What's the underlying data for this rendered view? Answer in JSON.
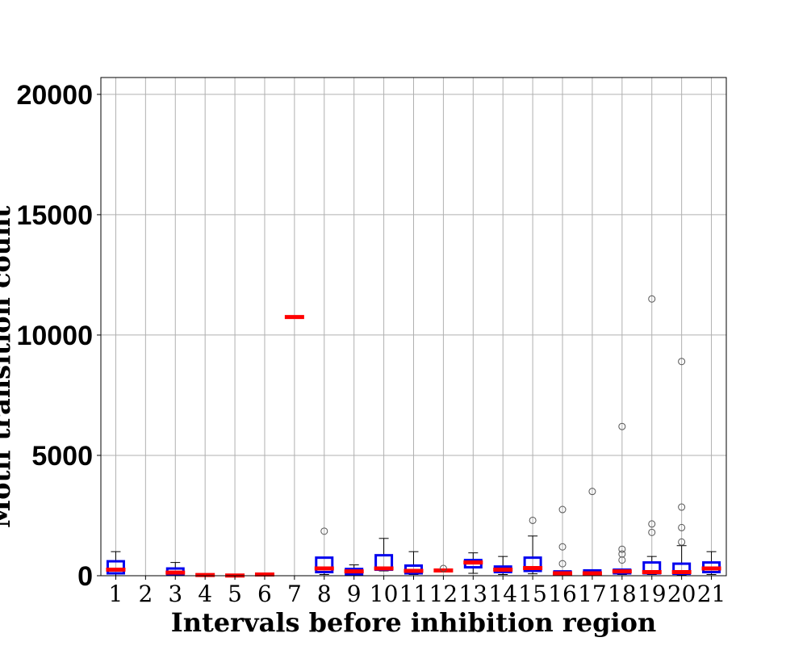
{
  "chart_data": {
    "type": "box",
    "xlabel": "Intervals before inhibition region",
    "ylabel": "Motif transition count",
    "ylim": [
      0,
      20700
    ],
    "yticks": [
      0,
      5000,
      10000,
      15000,
      20000
    ],
    "categories": [
      "1",
      "2",
      "3",
      "4",
      "5",
      "6",
      "7",
      "8",
      "9",
      "10",
      "11",
      "12",
      "13",
      "14",
      "15",
      "16",
      "17",
      "18",
      "19",
      "20",
      "21"
    ],
    "grid": true,
    "legend": "none",
    "colors": {
      "box": "#0000ee",
      "median": "#ff0000",
      "whisker": "#000000",
      "flier": "#555555",
      "grid": "#b0b0b0"
    },
    "boxes": [
      {
        "category": "1",
        "whislo": 0,
        "q1": 100,
        "median": 250,
        "q3": 600,
        "whishi": 1000,
        "fliers": []
      },
      {
        "category": "2",
        "empty": true
      },
      {
        "category": "3",
        "whislo": 0,
        "q1": 60,
        "median": 130,
        "q3": 300,
        "whishi": 550,
        "fliers": []
      },
      {
        "category": "4",
        "whislo": 30,
        "q1": 30,
        "median": 30,
        "q3": 30,
        "whishi": 30,
        "fliers": []
      },
      {
        "category": "5",
        "whislo": 10,
        "q1": 10,
        "median": 10,
        "q3": 10,
        "whishi": 10,
        "fliers": []
      },
      {
        "category": "6",
        "whislo": 50,
        "q1": 50,
        "median": 50,
        "q3": 50,
        "whishi": 50,
        "fliers": []
      },
      {
        "category": "7",
        "whislo": 10750,
        "q1": 10750,
        "median": 10750,
        "q3": 10750,
        "whishi": 10750,
        "fliers": []
      },
      {
        "category": "8",
        "whislo": 50,
        "q1": 150,
        "median": 300,
        "q3": 750,
        "whishi": 750,
        "fliers": [
          1850
        ]
      },
      {
        "category": "9",
        "whislo": 30,
        "q1": 60,
        "median": 180,
        "q3": 280,
        "whishi": 450,
        "fliers": []
      },
      {
        "category": "10",
        "whislo": 200,
        "q1": 250,
        "median": 300,
        "q3": 850,
        "whishi": 1550,
        "fliers": []
      },
      {
        "category": "11",
        "whislo": 50,
        "q1": 100,
        "median": 200,
        "q3": 420,
        "whishi": 1000,
        "fliers": []
      },
      {
        "category": "12",
        "whislo": 200,
        "q1": 200,
        "median": 220,
        "q3": 250,
        "whishi": 250,
        "fliers": [
          300
        ]
      },
      {
        "category": "13",
        "whislo": 100,
        "q1": 350,
        "median": 550,
        "q3": 650,
        "whishi": 950,
        "fliers": []
      },
      {
        "category": "14",
        "whislo": 50,
        "q1": 150,
        "median": 250,
        "q3": 380,
        "whishi": 800,
        "fliers": []
      },
      {
        "category": "15",
        "whislo": 80,
        "q1": 200,
        "median": 320,
        "q3": 750,
        "whishi": 1650,
        "fliers": [
          2300
        ]
      },
      {
        "category": "16",
        "whislo": 20,
        "q1": 50,
        "median": 100,
        "q3": 180,
        "whishi": 180,
        "fliers": [
          500,
          1200,
          2750
        ]
      },
      {
        "category": "17",
        "whislo": 20,
        "q1": 50,
        "median": 100,
        "q3": 220,
        "whishi": 220,
        "fliers": [
          3500
        ]
      },
      {
        "category": "18",
        "whislo": 50,
        "q1": 100,
        "median": 180,
        "q3": 250,
        "whishi": 250,
        "fliers": [
          650,
          900,
          1100,
          6200
        ]
      },
      {
        "category": "19",
        "whislo": 50,
        "q1": 100,
        "median": 150,
        "q3": 550,
        "whishi": 800,
        "fliers": [
          1800,
          2150,
          11500
        ]
      },
      {
        "category": "20",
        "whislo": 30,
        "q1": 80,
        "median": 150,
        "q3": 500,
        "whishi": 1250,
        "fliers": [
          1400,
          2000,
          2850,
          8900
        ]
      },
      {
        "category": "21",
        "whislo": 50,
        "q1": 150,
        "median": 300,
        "q3": 550,
        "whishi": 1000,
        "fliers": []
      }
    ]
  }
}
